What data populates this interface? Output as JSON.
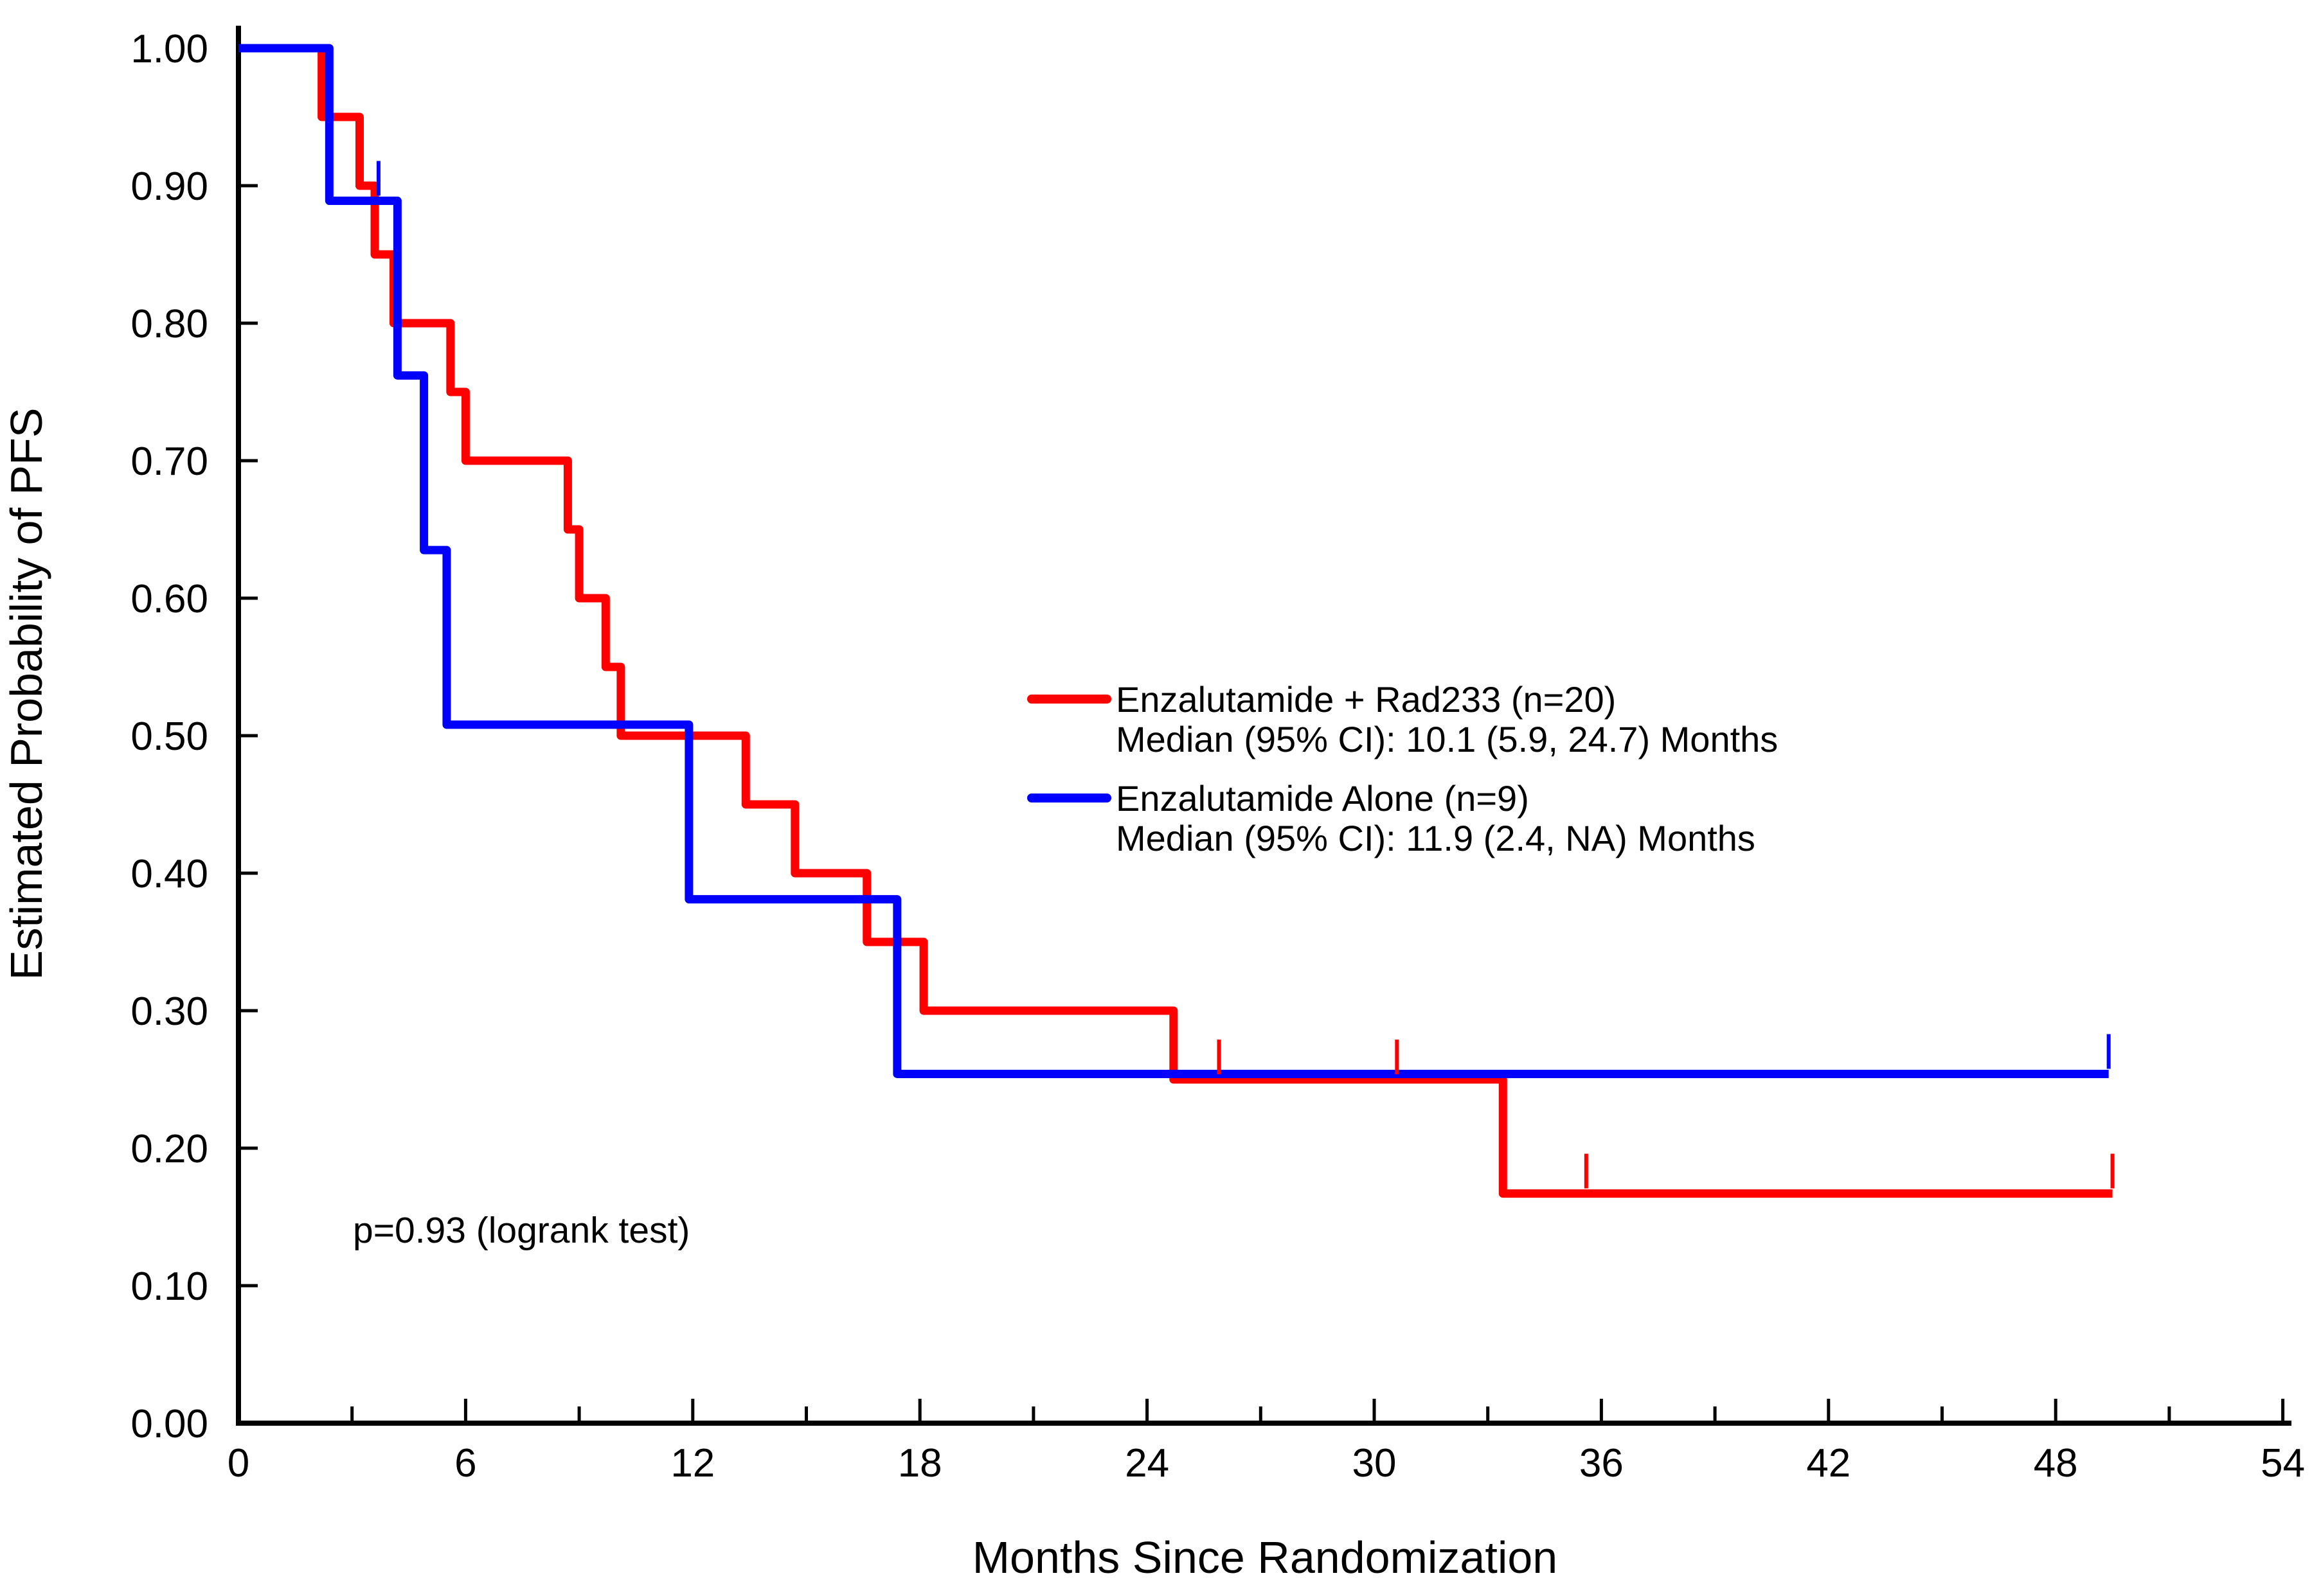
{
  "chart_data": {
    "type": "line",
    "subtype": "kaplan-meier-step",
    "title": "",
    "xlabel": "Months Since Randomization",
    "ylabel": "Estimated Probability of PFS",
    "xlim": [
      0,
      54
    ],
    "ylim": [
      0.0,
      1.0
    ],
    "grid": false,
    "legend_position": "center-right",
    "annotation": "p=0.93 (logrank test)",
    "x_ticks_major": [
      0,
      6,
      12,
      18,
      24,
      30,
      36,
      42,
      48,
      54
    ],
    "x_tick_labels": [
      "0",
      "6",
      "12",
      "18",
      "24",
      "30",
      "36",
      "42",
      "48",
      "54"
    ],
    "x_ticks_minor": [
      3,
      9,
      15,
      21,
      27,
      33,
      39,
      45,
      51
    ],
    "y_ticks": [
      0.0,
      0.1,
      0.2,
      0.3,
      0.4,
      0.5,
      0.6,
      0.7,
      0.8,
      0.9,
      1.0
    ],
    "y_tick_labels": [
      "0.00",
      "0.10",
      "0.20",
      "0.30",
      "0.40",
      "0.50",
      "0.60",
      "0.70",
      "0.80",
      "0.90",
      "1.00"
    ],
    "series": [
      {
        "name": "Enzalutamide + Rad233 (n=20)",
        "median_label": "Median (95% CI): 10.1 (5.9, 24.7) Months",
        "color": "#FF0000",
        "steps": [
          [
            0,
            1.0
          ],
          [
            2.2,
            0.95
          ],
          [
            3.2,
            0.9
          ],
          [
            3.6,
            0.85
          ],
          [
            4.1,
            0.8
          ],
          [
            5.6,
            0.75
          ],
          [
            6.0,
            0.7
          ],
          [
            8.7,
            0.65
          ],
          [
            9.0,
            0.6
          ],
          [
            9.7,
            0.55
          ],
          [
            10.1,
            0.5
          ],
          [
            13.4,
            0.45
          ],
          [
            14.7,
            0.4
          ],
          [
            16.6,
            0.35
          ],
          [
            18.1,
            0.3
          ],
          [
            24.7,
            0.25
          ],
          [
            33.4,
            0.167
          ]
        ],
        "end_time": 49.5,
        "censors": [
          [
            25.9,
            0.25
          ],
          [
            30.6,
            0.25
          ],
          [
            35.6,
            0.167
          ],
          [
            49.5,
            0.167
          ]
        ]
      },
      {
        "name": "Enzalutamide Alone (n=9)",
        "median_label": "Median (95% CI): 11.9 (2.4, NA) Months",
        "color": "#0000FF",
        "steps": [
          [
            0,
            1.0
          ],
          [
            2.4,
            0.889
          ],
          [
            4.2,
            0.762
          ],
          [
            4.9,
            0.635
          ],
          [
            5.5,
            0.508
          ],
          [
            11.9,
            0.381
          ],
          [
            17.4,
            0.254
          ]
        ],
        "end_time": 49.4,
        "censors": [
          [
            3.7,
            0.889
          ],
          [
            49.4,
            0.254
          ]
        ]
      }
    ],
    "axis_color": "#000000",
    "background": "#FFFFFF"
  }
}
